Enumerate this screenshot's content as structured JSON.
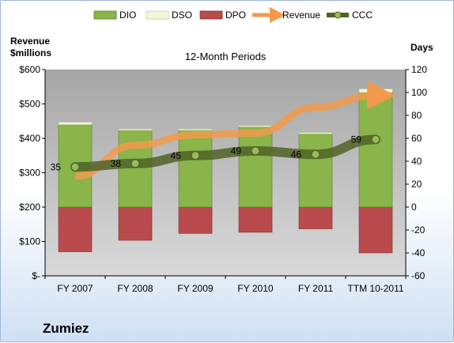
{
  "company": "Zumiez",
  "colors": {
    "dio": "#8ab54a",
    "dso": "#f2f6da",
    "dpo": "#b94b4d",
    "revenue": "#f29a4b",
    "ccc": "#4f6228",
    "plot_bg": "#bfbfbf"
  },
  "chart_data": {
    "type": "bar",
    "title": "12-Month Periods",
    "left_axis_title": [
      "Revenue",
      "$millions"
    ],
    "right_axis_title": "Days",
    "categories": [
      "FY 2007",
      "FY 2008",
      "FY 2009",
      "FY 2010",
      "FY 2011",
      "TTM 10-2011"
    ],
    "left_axis": {
      "min": 0,
      "max": 600,
      "ticks": [
        "$-",
        "$100",
        "$200",
        "$300",
        "$400",
        "$500",
        "$600"
      ]
    },
    "right_axis": {
      "min": -60,
      "max": 120,
      "ticks": [
        "-60",
        "-40",
        "-20",
        "0",
        "20",
        "40",
        "60",
        "80",
        "100",
        "120"
      ]
    },
    "legend": [
      "DIO",
      "DSO",
      "DPO",
      "Revenue",
      "CCC"
    ],
    "legend_position": "top",
    "grid": false,
    "series": [
      {
        "name": "DIO",
        "axis": "right",
        "kind": "stacked-bar",
        "values": [
          72,
          67,
          67,
          70,
          64,
          100
        ]
      },
      {
        "name": "DSO",
        "axis": "right",
        "kind": "stacked-bar",
        "values": [
          2,
          1,
          1,
          1,
          1,
          3
        ]
      },
      {
        "name": "DPO",
        "axis": "right",
        "kind": "negative-bar",
        "values": [
          -39,
          -29,
          -23,
          -22,
          -19,
          -40
        ]
      },
      {
        "name": "Revenue",
        "axis": "left",
        "kind": "line",
        "values": [
          290,
          380,
          410,
          415,
          490,
          525
        ]
      },
      {
        "name": "CCC",
        "axis": "right",
        "kind": "line",
        "values": [
          35,
          38,
          45,
          49,
          46,
          59
        ]
      }
    ],
    "ccc_labels": [
      "35",
      "38",
      "45",
      "49",
      "46",
      "59"
    ]
  }
}
